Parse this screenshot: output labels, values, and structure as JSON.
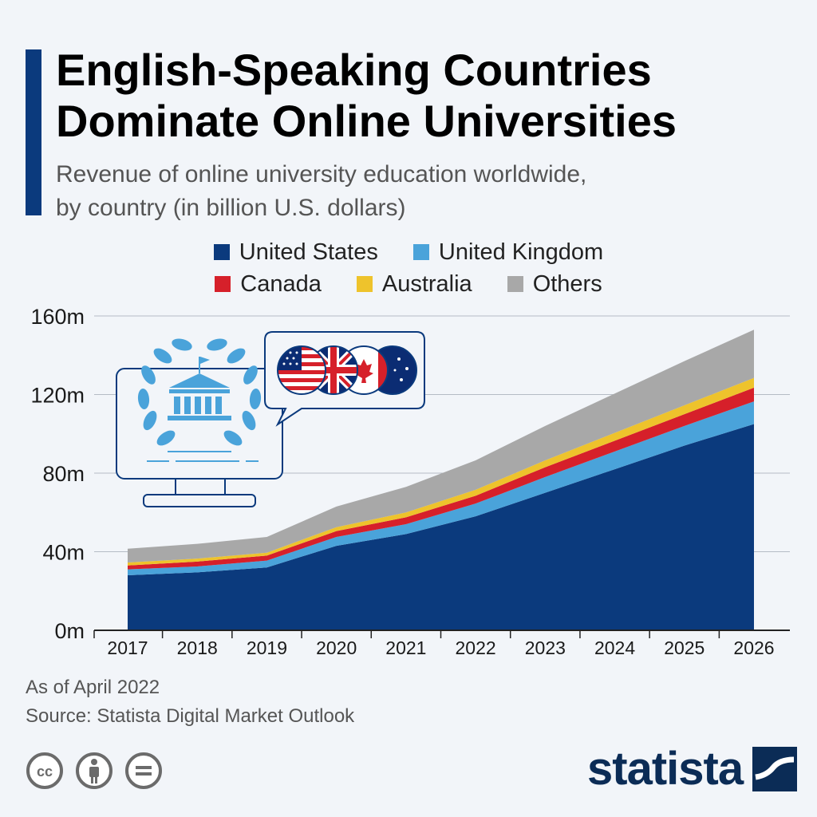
{
  "header": {
    "title_line1": "English-Speaking Countries",
    "title_line2": "Dominate Online Universities",
    "subtitle_line1": "Revenue of online university education worldwide,",
    "subtitle_line2": "by country (in billion U.S. dollars)"
  },
  "legend": [
    {
      "label": "United States",
      "color": "#0b3a7d"
    },
    {
      "label": "United Kingdom",
      "color": "#4aa3da"
    },
    {
      "label": "Canada",
      "color": "#d6202a"
    },
    {
      "label": "Australia",
      "color": "#eec32c"
    },
    {
      "label": "Others",
      "color": "#a8a8a8"
    }
  ],
  "chart_data": {
    "type": "area",
    "stacked": true,
    "title": "English-Speaking Countries Dominate Online Universities",
    "subtitle": "Revenue of online university education worldwide, by country (in billion U.S. dollars)",
    "x": [
      "2017",
      "2018",
      "2019",
      "2020",
      "2021",
      "2022",
      "2023",
      "2024",
      "2025",
      "2026"
    ],
    "series": [
      {
        "name": "United States",
        "color": "#0b3a7d",
        "values": [
          28,
          29.5,
          32,
          43,
          49,
          58,
          70,
          82,
          94,
          105
        ]
      },
      {
        "name": "United Kingdom",
        "color": "#4aa3da",
        "values": [
          3,
          3,
          3.5,
          4.5,
          5,
          6.5,
          8,
          9,
          10,
          11.5
        ]
      },
      {
        "name": "Canada",
        "color": "#d6202a",
        "values": [
          2,
          2.5,
          2.5,
          3,
          3.5,
          4,
          5,
          5.5,
          6,
          7
        ]
      },
      {
        "name": "Australia",
        "color": "#eec32c",
        "values": [
          1.5,
          1.5,
          1.5,
          2,
          2.5,
          3,
          3.5,
          4,
          4.5,
          5
        ]
      },
      {
        "name": "Others",
        "color": "#a8a8a8",
        "values": [
          7,
          7.5,
          8,
          10.5,
          13,
          15,
          17.5,
          20,
          22.5,
          24.5
        ]
      }
    ],
    "yticks": [
      "0m",
      "40m",
      "80m",
      "120m",
      "160m"
    ],
    "ytick_values": [
      0,
      40,
      80,
      120,
      160
    ],
    "ylim": [
      0,
      160
    ],
    "grid": true,
    "legend_position": "top-center"
  },
  "footer": {
    "note": "As of April 2022",
    "source": "Source: Statista Digital Market Outlook",
    "brand": "statista"
  },
  "icons": {
    "illustration": "online-university-monitor-icon",
    "flags": [
      "united-states-flag-icon",
      "united-kingdom-flag-icon",
      "canada-flag-icon",
      "australia-flag-icon"
    ],
    "license": [
      "creative-commons-icon",
      "attribution-icon",
      "no-derivatives-icon"
    ]
  }
}
